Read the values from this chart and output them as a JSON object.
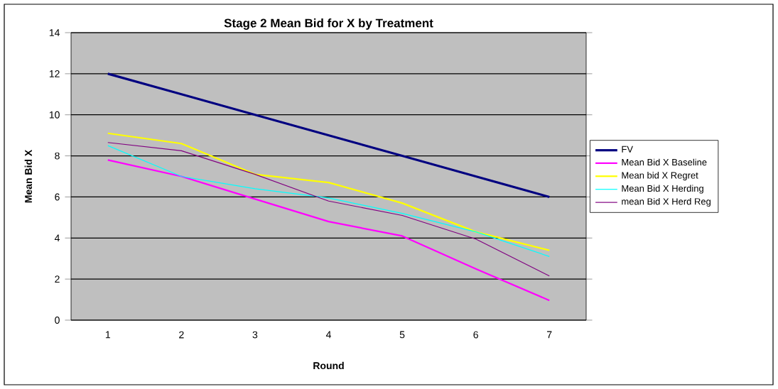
{
  "chart_data": {
    "type": "line",
    "title": "Stage 2 Mean Bid for X by Treatment",
    "xlabel": "Round",
    "ylabel": "Mean Bid X",
    "categories": [
      "1",
      "2",
      "3",
      "4",
      "5",
      "6",
      "7"
    ],
    "series": [
      {
        "name": "FV",
        "color": "#000080",
        "values": [
          12,
          11,
          10,
          9,
          8,
          7,
          6
        ]
      },
      {
        "name": "Mean Bid X Baseline",
        "color": "#ff00ff",
        "values": [
          7.8,
          7.0,
          5.9,
          4.8,
          4.1,
          2.5,
          0.96
        ]
      },
      {
        "name": "Mean bid X Regret",
        "color": "#ffff00",
        "values": [
          9.1,
          8.6,
          7.1,
          6.7,
          5.7,
          4.3,
          3.4
        ]
      },
      {
        "name": "Mean Bid X Herding",
        "color": "#00ffff",
        "values": [
          8.5,
          7.0,
          6.4,
          5.95,
          5.2,
          4.3,
          3.1
        ]
      },
      {
        "name": "mean Bid X Herd Reg",
        "color": "#800080",
        "values": [
          8.65,
          8.25,
          7.1,
          5.8,
          5.1,
          3.95,
          2.15
        ]
      }
    ],
    "ylim": [
      0,
      14
    ],
    "yticks": [
      0,
      2,
      4,
      6,
      8,
      10,
      12,
      14
    ],
    "grid": "y",
    "legend": "right",
    "marker": "none",
    "line_style": "solid"
  }
}
